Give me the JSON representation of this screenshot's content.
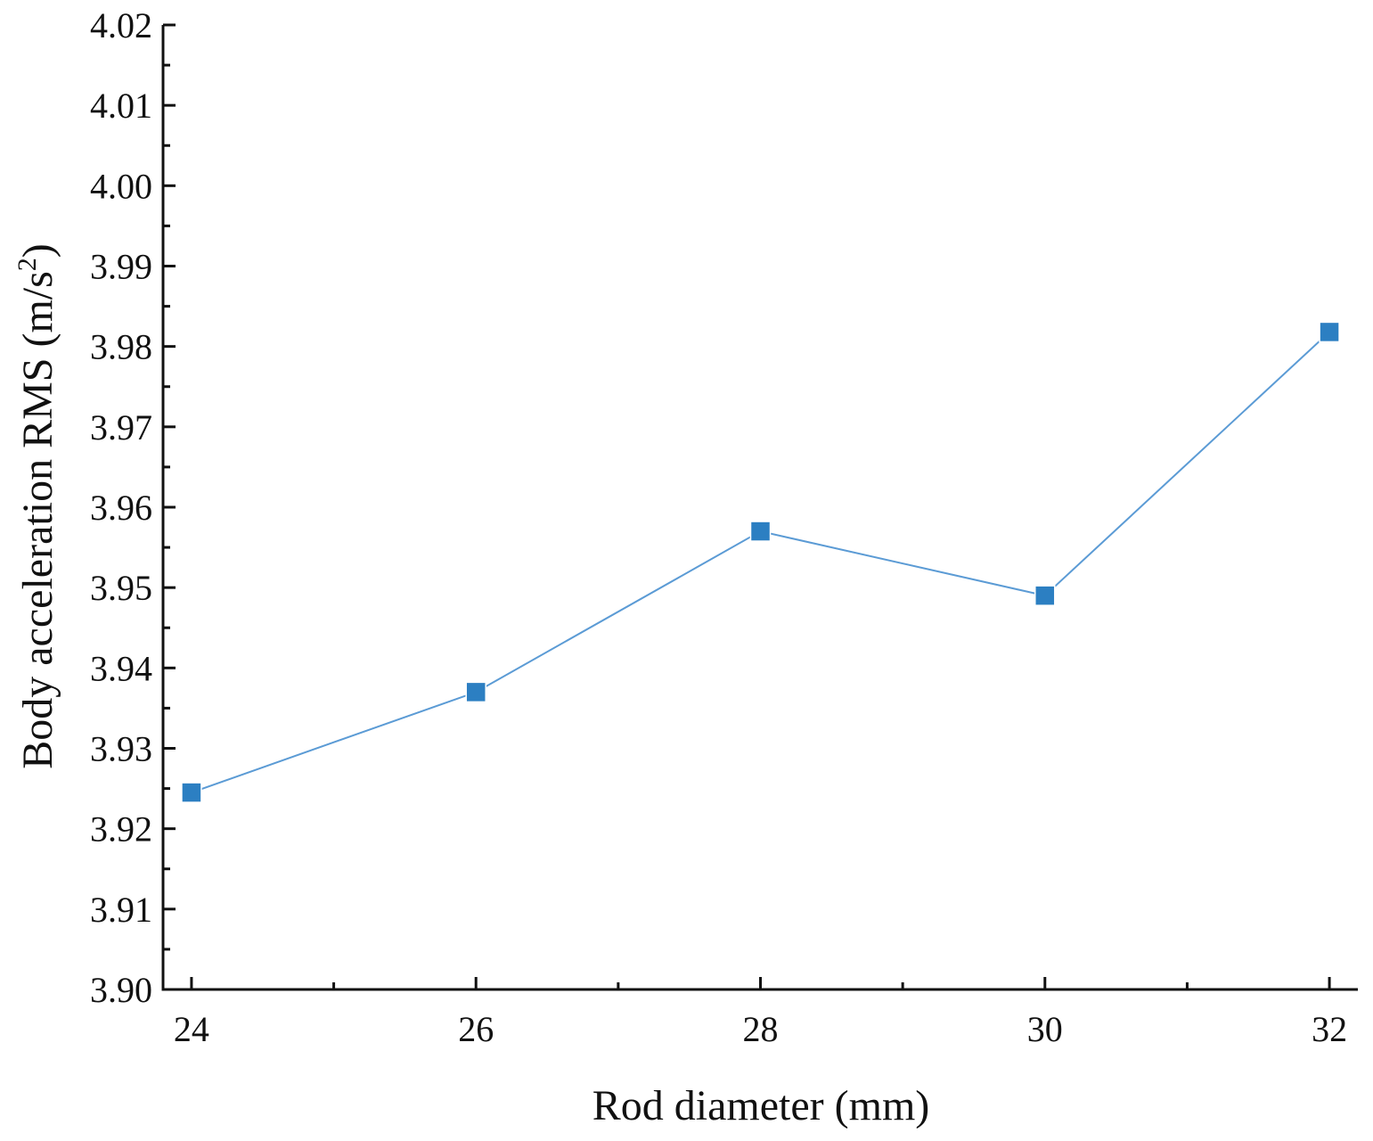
{
  "chart_data": {
    "type": "line",
    "title": "",
    "xlabel": "Rod diameter (mm)",
    "ylabel": {
      "text": "Body acceleration RMS (m/s",
      "superscript": "2",
      "close": ")"
    },
    "xlim": [
      23.8,
      32.2
    ],
    "ylim": [
      3.9,
      4.02
    ],
    "x_major_ticks": [
      24,
      26,
      28,
      30,
      32
    ],
    "x_tick_labels": [
      "24",
      "26",
      "28",
      "30",
      "32"
    ],
    "x_minor_ticks": [
      25,
      27,
      29,
      31
    ],
    "y_major_ticks": [
      3.9,
      3.91,
      3.92,
      3.93,
      3.94,
      3.95,
      3.96,
      3.97,
      3.98,
      3.99,
      4.0,
      4.01,
      4.02
    ],
    "y_tick_labels": [
      "3.90",
      "3.91",
      "3.92",
      "3.93",
      "3.94",
      "3.95",
      "3.96",
      "3.97",
      "3.98",
      "3.99",
      "4.00",
      "4.01",
      "4.02"
    ],
    "y_minor_ticks": [
      3.905,
      3.915,
      3.925,
      3.935,
      3.945,
      3.955,
      3.965,
      3.975,
      3.985,
      3.995,
      4.005,
      4.015
    ],
    "grid": false,
    "legend": "none",
    "series": [
      {
        "x": [
          24,
          26,
          28,
          30,
          32
        ],
        "values": [
          3.9245,
          3.937,
          3.957,
          3.949,
          3.9818
        ],
        "color": "#2c7fc2",
        "line_color": "#5b9bd5",
        "marker": "square"
      }
    ]
  }
}
